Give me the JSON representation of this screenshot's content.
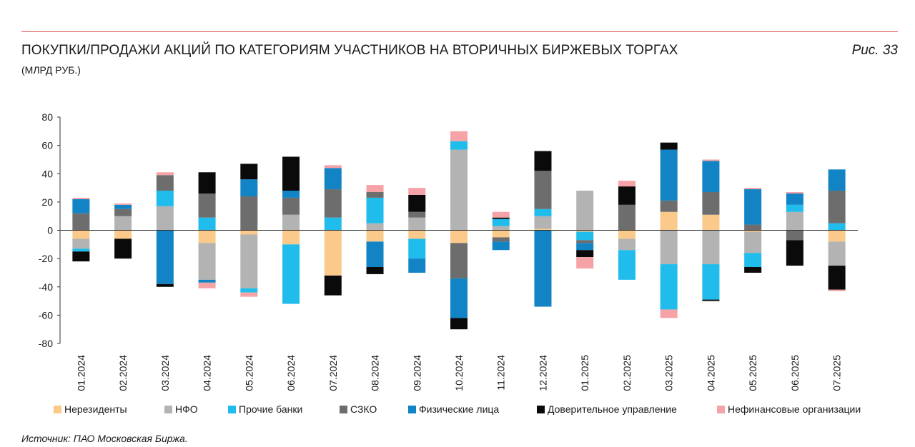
{
  "header": {
    "title": "ПОКУПКИ/ПРОДАЖИ АКЦИЙ ПО КАТЕГОРИЯМ УЧАСТНИКОВ НА ВТОРИЧНЫХ БИРЖЕВЫХ ТОРГАХ",
    "subtitle": "(МЛРД РУБ.)",
    "figure_label": "Рис. 33"
  },
  "footer": {
    "source": "Источник: ПАО Московская Биржа."
  },
  "colors": {
    "accent_rule": "#d9534f",
    "axis": "#333333"
  },
  "chart_data": {
    "type": "bar",
    "stacked": true,
    "ylim": [
      -80,
      80
    ],
    "yticks": [
      80,
      60,
      40,
      20,
      0,
      -20,
      -40,
      -60,
      -80
    ],
    "ytick_labels": [
      "80",
      "60",
      "40",
      "20",
      "0",
      "-20",
      "-40",
      "-60",
      "-80"
    ],
    "grid": false,
    "legend_position": "bottom",
    "categories": [
      "01.2024",
      "02.2024",
      "03.2024",
      "04.2024",
      "05.2024",
      "06.2024",
      "07.2024",
      "08.2024",
      "09.2024",
      "10.2024",
      "11.2024",
      "12.2024",
      "01.2025",
      "02.2025",
      "03.2025",
      "04.2025",
      "05.2025",
      "06.2025",
      "07.2025"
    ],
    "series": [
      {
        "name": "Нерезиденты",
        "color": "#fbc98a",
        "values": [
          -6,
          -6,
          0,
          -9,
          -3,
          -10,
          -32,
          -8,
          -6,
          -9,
          -5,
          1,
          -1,
          -6,
          13,
          11,
          -1,
          0,
          -8
        ]
      },
      {
        "name": "НФО",
        "color": "#b3b3b3",
        "values": [
          -7,
          10,
          17,
          -26,
          -38,
          11,
          0,
          5,
          9,
          57,
          3,
          9,
          28,
          -8,
          -24,
          -24,
          -15,
          13,
          -17
        ]
      },
      {
        "name": "Прочие банки",
        "color": "#1fbcec",
        "values": [
          -2,
          0,
          11,
          9,
          -3,
          -42,
          9,
          18,
          -14,
          6,
          5,
          5,
          -6,
          -21,
          -32,
          -25,
          -10,
          5,
          5
        ]
      },
      {
        "name": "СЗКО",
        "color": "#6d6d6d",
        "values": [
          12,
          5,
          11,
          17,
          24,
          12,
          20,
          4,
          4,
          -25,
          -3,
          27,
          -2,
          18,
          8,
          16,
          4,
          -7,
          23
        ]
      },
      {
        "name": "Физические лица",
        "color": "#1283c4",
        "values": [
          10,
          3,
          -38,
          -2,
          12,
          5,
          15,
          -18,
          -10,
          -28,
          -6,
          -54,
          -5,
          0,
          36,
          22,
          25,
          8,
          15
        ]
      },
      {
        "name": "Доверительное управление",
        "color": "#0a0a0a",
        "values": [
          -7,
          -14,
          -2,
          15,
          11,
          24,
          -14,
          -5,
          12,
          -8,
          1,
          14,
          -5,
          13,
          5,
          -1,
          -4,
          -18,
          -17
        ]
      },
      {
        "name": "Нефинансовые организации",
        "color": "#f5a3a6",
        "values": [
          1,
          1,
          2,
          -4,
          -3,
          0,
          2,
          5,
          5,
          7,
          4,
          0,
          -8,
          4,
          -6,
          1,
          1,
          1,
          -1
        ]
      }
    ]
  }
}
